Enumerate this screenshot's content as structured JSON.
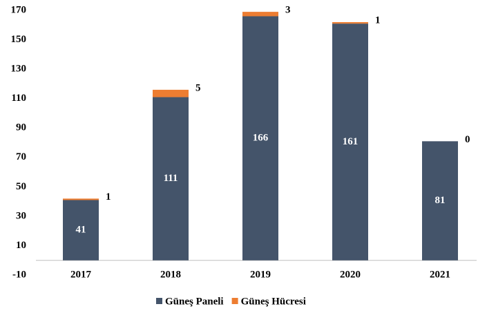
{
  "chart_data": {
    "type": "stacked_bar",
    "categories": [
      "2017",
      "2018",
      "2019",
      "2020",
      "2021"
    ],
    "series": [
      {
        "name": "Güneş Paneli",
        "color": "#44546a",
        "values": [
          41,
          111,
          166,
          161,
          81
        ]
      },
      {
        "name": "Güneş Hücresi",
        "color": "#ed7d31",
        "values": [
          1,
          5,
          3,
          1,
          0
        ]
      }
    ],
    "ylim": [
      -10,
      170
    ],
    "yticks": [
      -10,
      10,
      30,
      50,
      70,
      90,
      110,
      130,
      150,
      170
    ],
    "grid": false,
    "legend": "bottom"
  }
}
